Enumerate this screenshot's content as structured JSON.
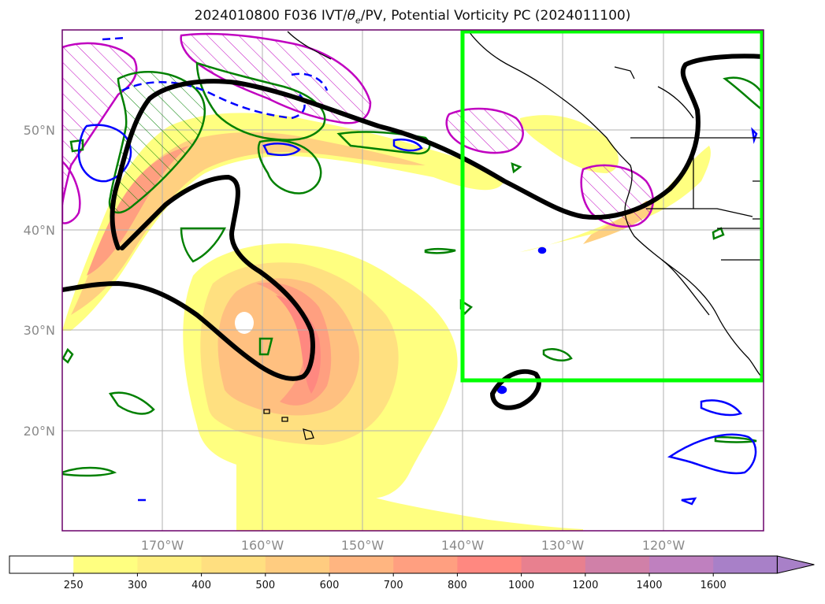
{
  "title": {
    "prefix": "2024010800 F036 IVT/",
    "theta_symbol": "θ",
    "theta_sub": "e",
    "suffix": "/PV, Potential Vorticity PC (2024011100)"
  },
  "map": {
    "lon_range": [
      -180,
      -110
    ],
    "lat_range": [
      10,
      60
    ],
    "lat_labels": [
      "50°N",
      "40°N",
      "30°N",
      "20°N"
    ],
    "lon_labels": [
      "170°W",
      "160°W",
      "150°W",
      "140°W",
      "130°W",
      "120°W"
    ],
    "lat_grid": [
      50,
      40,
      30,
      20
    ],
    "lon_grid": [
      -170,
      -160,
      -150,
      -140,
      -130,
      -120
    ],
    "highlight_box": {
      "lon": [
        -140,
        -110
      ],
      "lat": [
        25,
        60
      ],
      "color": "#00ff00"
    }
  },
  "colorbar": {
    "levels": [
      "250",
      "300",
      "400",
      "500",
      "600",
      "700",
      "800",
      "1000",
      "1200",
      "1400",
      "1600"
    ],
    "colors": [
      "#ffffff",
      "#ffff80",
      "#ffef80",
      "#ffdf80",
      "#ffcc80",
      "#ffb580",
      "#ff9f80",
      "#ff8880",
      "#e8808f",
      "#d080a8",
      "#bf80bf",
      "#a880c8"
    ],
    "extend": "max"
  },
  "legend_colors": {
    "pv_contour": "#000000",
    "theta_e_positive": "#008000",
    "theta_e_negative": "#0000ff",
    "pv_anomaly": "#c000c0"
  }
}
